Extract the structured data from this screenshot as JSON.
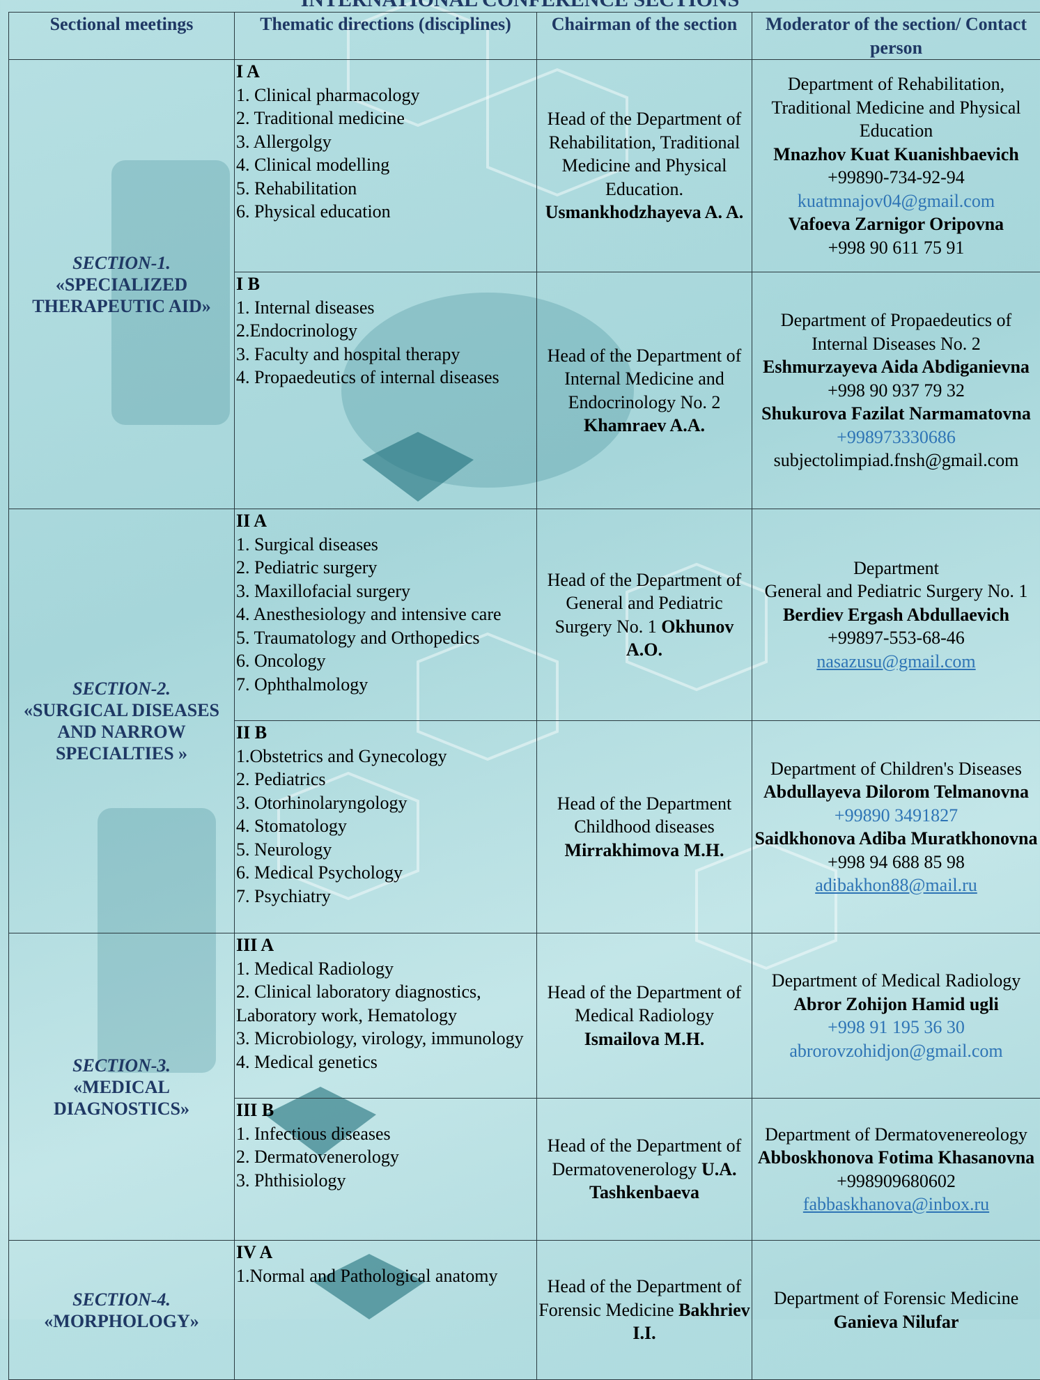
{
  "title": "INTERNATIONAL CONFERENCE SECTIONS",
  "table": {
    "headers": [
      "Sectional meetings",
      "Thematic directions (disciplines)",
      "Chairman of the section",
      "Moderator of the section/ Contact person"
    ],
    "sections": [
      {
        "label": "SECTION-1.",
        "name": "«SPECIALIZED THERAPEUTIC AID»",
        "rows": [
          {
            "code": "I A",
            "items": [
              "1. Clinical pharmacology",
              "2. Traditional medicine",
              "3. Allergolgy",
              "4. Clinical modelling",
              "5. Rehabilitation",
              "6. Physical education"
            ],
            "chair": {
              "text": "Head of the Department of Rehabilitation, Traditional Medicine and Physical Education.",
              "name": "Usmankhodzhayeva A. A."
            },
            "moderator": [
              [
                {
                  "text": "Department of Rehabilitation, Traditional Medicine and Physical Education",
                  "kind": "plain"
                }
              ],
              [
                {
                  "text": "Mnazhov Kuat Kuanishbaevich",
                  "kind": "bold"
                },
                {
                  "text": "+99890-734-92-94",
                  "kind": "plain"
                }
              ],
              [
                {
                  "text": "kuatmnajov04@gmail.com",
                  "kind": "email"
                }
              ],
              [
                {
                  "text": "Vafoeva Zarnigor Oripovna",
                  "kind": "bold"
                }
              ],
              [
                {
                  "text": "+998 90 611 75 91",
                  "kind": "plain"
                }
              ]
            ]
          },
          {
            "code": "I B",
            "items": [
              "1. Internal diseases",
              "2.Endocrinology",
              "3. Faculty and hospital therapy",
              "4. Propaedeutics of internal diseases"
            ],
            "chair": {
              "text": "Head of the Department of Internal Medicine and Endocrinology No. 2",
              "name": "Khamraev A.A."
            },
            "moderator": [
              [
                {
                  "text": "Department of Propaedeutics of Internal Diseases No. 2",
                  "kind": "plain"
                }
              ],
              [
                {
                  "text": "Eshmurzayeva Aida Abdiganievna",
                  "kind": "bold"
                }
              ],
              [
                {
                  "text": "+998 90 937 79 32",
                  "kind": "plain"
                }
              ],
              [
                {
                  "text": "Shukurova Fazilat Narmamatovna",
                  "kind": "bold"
                }
              ],
              [
                {
                  "text": "+998973330686",
                  "kind": "email"
                }
              ],
              [
                {
                  "text": "subjectolimpiad.fnsh@gmail.com",
                  "kind": "plain"
                }
              ]
            ]
          }
        ]
      },
      {
        "label": "SECTION-2.",
        "name": "«SURGICAL DISEASES AND NARROW SPECIALTIES »",
        "rows": [
          {
            "code": "II A",
            "items": [
              "1. Surgical diseases",
              "2. Pediatric surgery",
              "3. Maxillofacial surgery",
              "4. Anesthesiology and intensive care",
              "5. Traumatology and Orthopedics",
              "6. Oncology",
              "7. Ophthalmology"
            ],
            "chair": {
              "text": "Head of the Department of General and Pediatric Surgery No. 1",
              "name": "Okhunov A.O."
            },
            "moderator": [
              [
                {
                  "text": "Department",
                  "kind": "plain"
                }
              ],
              [
                {
                  "text": "General and Pediatric Surgery No. 1",
                  "kind": "plain"
                }
              ],
              [
                {
                  "text": "Berdiev Ergash Abdullaevich",
                  "kind": "bold"
                }
              ],
              [
                {
                  "text": "+99897-553-68-46",
                  "kind": "plain"
                }
              ],
              [
                {
                  "text": "nasazusu@gmail.com",
                  "kind": "link"
                }
              ]
            ]
          },
          {
            "code": "II B",
            "items": [
              "1.Obstetrics and Gynecology",
              "2. Pediatrics",
              "3. Otorhinolaryngology",
              "4. Stomatology",
              "5. Neurology",
              "6. Medical Psychology",
              "7. Psychiatry"
            ],
            "chair": {
              "text": "Head of the Department Childhood diseases",
              "name": "Mirrakhimova M.H."
            },
            "moderator": [
              [
                {
                  "text": "Department of Children's Diseases",
                  "kind": "plain"
                }
              ],
              [
                {
                  "text": "Abdullayeva Dilorom Telmanovna",
                  "kind": "bold"
                }
              ],
              [
                {
                  "text": "+99890 3491827",
                  "kind": "email"
                }
              ],
              [
                {
                  "text": "Saidkhonova Adiba Muratkhonovna",
                  "kind": "bold"
                }
              ],
              [
                {
                  "text": "+998 94 688 85 98",
                  "kind": "plain"
                }
              ],
              [
                {
                  "text": "adibakhon88@mail.ru",
                  "kind": "link"
                }
              ]
            ]
          }
        ]
      },
      {
        "label": "SECTION-3.",
        "name": "«MEDICAL DIAGNOSTICS»",
        "rows": [
          {
            "code": "III A",
            "items": [
              "1. Medical Radiology",
              "2. Clinical laboratory diagnostics, Laboratory work, Hematology",
              "3. Microbiology, virology, immunology",
              "4. Medical genetics"
            ],
            "chair": {
              "text": "Head of the Department of Medical Radiology",
              "name": "Ismailova M.H."
            },
            "moderator": [
              [
                {
                  "text": "Department of Medical Radiology",
                  "kind": "plain"
                }
              ],
              [
                {
                  "text": "Abror Zohijon Hamid ugli",
                  "kind": "bold"
                }
              ],
              [
                {
                  "text": "+998 91 195 36 30",
                  "kind": "email"
                }
              ],
              [
                {
                  "text": "abrorovzohidjon@gmail.com",
                  "kind": "email"
                }
              ]
            ]
          },
          {
            "code": "III B",
            "items": [
              "1. Infectious diseases",
              "2. Dermatovenerology",
              "3. Phthisiology"
            ],
            "chair": {
              "text": "Head of the Department of Dermatovenerology",
              "name": "U.A. Tashkenbaeva"
            },
            "moderator": [
              [
                {
                  "text": "Department of Dermatovenereology",
                  "kind": "plain"
                }
              ],
              [
                {
                  "text": "Abboskhonova Fotima Khasanovna",
                  "kind": "bold"
                }
              ],
              [
                {
                  "text": "+998909680602",
                  "kind": "plain"
                }
              ],
              [
                {
                  "text": "fabbaskhanova@inbox.ru",
                  "kind": "link"
                }
              ]
            ]
          }
        ]
      },
      {
        "label": "SECTION-4.",
        "name": "«MORPHOLOGY»",
        "rows": [
          {
            "code": "IV A",
            "items": [
              "1.Normal and Pathological anatomy"
            ],
            "chair": {
              "text": "Head of the Department of Forensic Medicine",
              "name": "Bakhriev I.I."
            },
            "moderator": [
              [
                {
                  "text": "Department of Forensic Medicine",
                  "kind": "plain"
                }
              ],
              [
                {
                  "text": "Ganieva Nilufar",
                  "kind": "bold"
                }
              ]
            ]
          }
        ]
      }
    ]
  }
}
